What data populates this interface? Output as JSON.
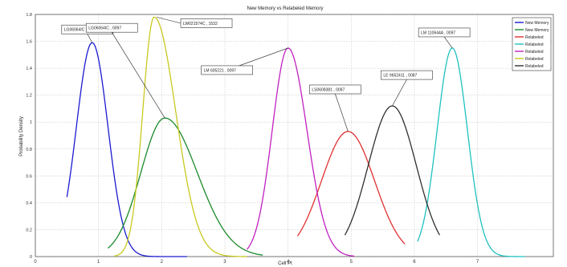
{
  "chart_data": {
    "type": "line",
    "title": "New Memory vs Relabeled Memory",
    "xlabel": "Cell Pt",
    "ylabel": "Probability Density",
    "xlim": [
      0,
      8.2
    ],
    "ylim": [
      0,
      1.8
    ],
    "xticks": [
      "0",
      "1",
      "2",
      "3",
      "4",
      "5",
      "6",
      "7"
    ],
    "yticks": [
      "0",
      "0.2",
      "0.4",
      "0.6",
      "0.8",
      "1",
      "1.2",
      "1.4",
      "1.6",
      "1.8"
    ],
    "grid": true,
    "legend_position": "top-right",
    "series": [
      {
        "name": "New Memory",
        "color": "#1a1ad0",
        "mu": 0.9,
        "sigma": 0.25,
        "peak": 1.59,
        "range": [
          0.5,
          2.4
        ]
      },
      {
        "name": "New Memory",
        "color": "#1a8a2a",
        "mu": 2.05,
        "sigma": 0.38,
        "peak": 1.03,
        "range": [
          1.15,
          3.6
        ],
        "skew": 1.35
      },
      {
        "name": "Relabeled",
        "color": "#e03030",
        "mu": 4.95,
        "sigma": 0.42,
        "peak": 0.93,
        "range": [
          4.15,
          5.85
        ]
      },
      {
        "name": "Relabeled",
        "color": "#20c0c0",
        "mu": 6.6,
        "sigma": 0.24,
        "peak": 1.55,
        "range": [
          6.05,
          7.75
        ]
      },
      {
        "name": "Relabeled",
        "color": "#c020c0",
        "mu": 4.0,
        "sigma": 0.25,
        "peak": 1.55,
        "range": [
          3.35,
          5.05
        ],
        "skew": 1.2
      },
      {
        "name": "Relabeled",
        "color": "#c8c820",
        "mu": 1.88,
        "sigma": 0.18,
        "peak": 1.78,
        "range": [
          1.25,
          3.35
        ],
        "skew": 1.9
      },
      {
        "name": "Relabeled",
        "color": "#303030",
        "mu": 5.65,
        "sigma": 0.38,
        "peak": 1.12,
        "range": [
          4.9,
          6.4
        ]
      }
    ],
    "annotations": [
      {
        "text": "LG06064IC , 0097",
        "x": 0.9,
        "y": 1.59
      },
      {
        "text": "LG06064IC , 0097",
        "x": 2.05,
        "y": 1.03
      },
      {
        "text": "LW021574C , 1532",
        "x": 1.92,
        "y": 1.78
      },
      {
        "text": "LM 605221 , 0097",
        "x": 4.0,
        "y": 1.55
      },
      {
        "text": "LS0608381 , 0097",
        "x": 4.95,
        "y": 0.93
      },
      {
        "text": "LE 9652411 , 0087",
        "x": 5.65,
        "y": 1.12
      },
      {
        "text": "LM 110644A , 0097",
        "x": 6.6,
        "y": 1.55
      }
    ]
  }
}
